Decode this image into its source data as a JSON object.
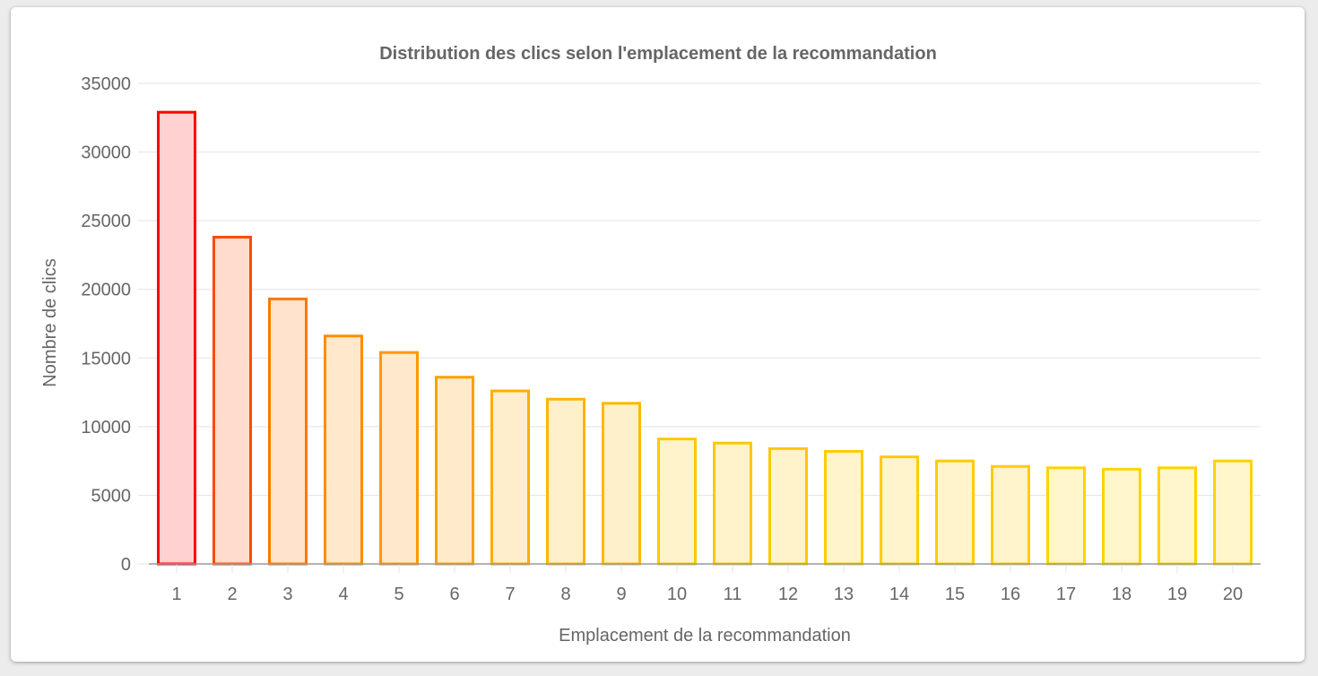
{
  "chart_data": {
    "type": "bar",
    "title": "Distribution des clics selon l'emplacement de la recommandation",
    "xlabel": "Emplacement de la recommandation",
    "ylabel": "Nombre de clics",
    "categories": [
      "1",
      "2",
      "3",
      "4",
      "5",
      "6",
      "7",
      "8",
      "9",
      "10",
      "11",
      "12",
      "13",
      "14",
      "15",
      "16",
      "17",
      "18",
      "19",
      "20"
    ],
    "values": [
      32900,
      23800,
      19300,
      16600,
      15400,
      13600,
      12600,
      12000,
      11700,
      9100,
      8800,
      8400,
      8200,
      7800,
      7500,
      7100,
      7000,
      6900,
      7000,
      7500
    ],
    "ylim": [
      0,
      35000
    ],
    "yticks": [
      "0",
      "5000",
      "10000",
      "15000",
      "20000",
      "25000",
      "30000",
      "35000"
    ],
    "grid": true,
    "bar_border_colors": [
      "#ff0000",
      "#ff4a00",
      "#ff7800",
      "#ff8c00",
      "#ff9800",
      "#ffa000",
      "#ffae00",
      "#ffb400",
      "#ffb800",
      "#ffc800",
      "#ffc800",
      "#ffc800",
      "#ffcc00",
      "#ffcc00",
      "#ffcc00",
      "#ffcc00",
      "#ffd200",
      "#ffd200",
      "#ffd200",
      "#ffd200"
    ],
    "bar_fill_colors": [
      "#ffd1d1",
      "#ffdccd",
      "#ffe3cd",
      "#ffe8cc",
      "#ffe9cc",
      "#ffebcc",
      "#ffeecc",
      "#fff0cc",
      "#fff0cc",
      "#fff3cc",
      "#fff3cc",
      "#fff3cc",
      "#fff4cc",
      "#fff4cc",
      "#fff4cc",
      "#fff4cc",
      "#fff6cc",
      "#fff6cc",
      "#fff6cc",
      "#fff6cc"
    ]
  }
}
